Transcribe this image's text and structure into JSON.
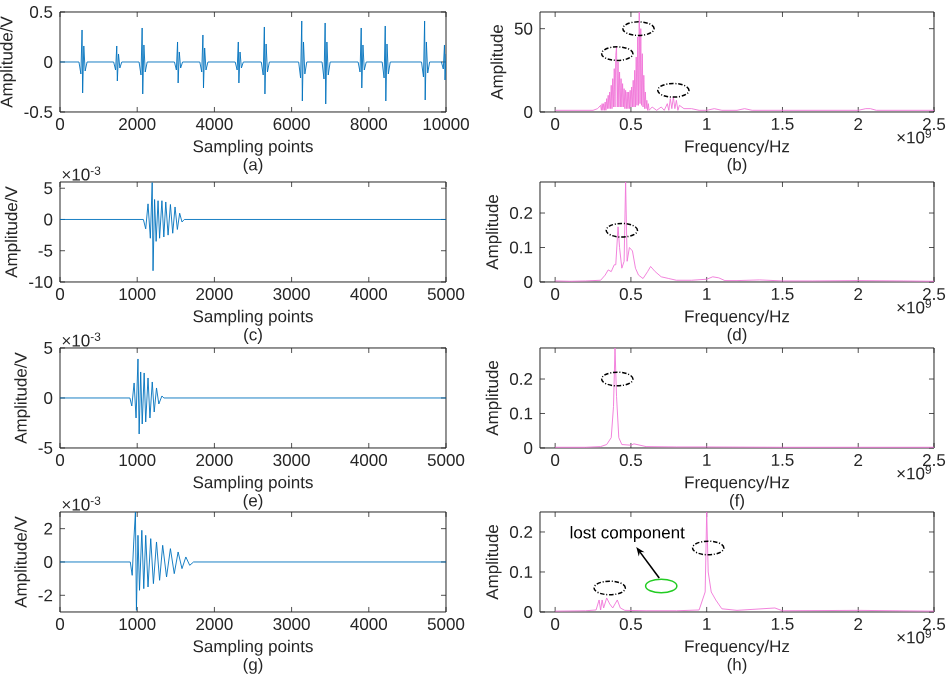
{
  "chart_data": [
    {
      "type": "line",
      "title": "(a)",
      "xlabel": "Sampling points",
      "ylabel": "Amplitude/V",
      "xlim": [
        0,
        10000
      ],
      "xticks": [
        0,
        2000,
        4000,
        6000,
        8000,
        10000
      ],
      "ylim": [
        -0.5,
        0.5
      ],
      "yticks": [
        -0.5,
        0,
        0.5
      ],
      "series": [
        {
          "color": "#0072bd",
          "x": [
            0,
            491,
            541,
            571,
            586,
            616,
            651,
            701,
            1390,
            1440,
            1470,
            1485,
            1515,
            1550,
            1600,
            2048,
            2098,
            2128,
            2143,
            2173,
            2208,
            2258,
            2965,
            3015,
            3045,
            3060,
            3090,
            3125,
            3175,
            3622,
            3672,
            3702,
            3717,
            3747,
            3782,
            3832,
            4539,
            4589,
            4619,
            4634,
            4664,
            4699,
            4749,
            5214,
            5264,
            5294,
            5309,
            5339,
            5374,
            5424,
            6183,
            6233,
            6263,
            6278,
            6308,
            6343,
            6393,
            6789,
            6839,
            6869,
            6884,
            6914,
            6949,
            6999,
            7723,
            7773,
            7803,
            7818,
            7848,
            7883,
            7933,
            8346,
            8396,
            8426,
            8441,
            8471,
            8506,
            8556,
            9366,
            9416,
            9446,
            9461,
            9491,
            9526,
            9576,
            9880,
            9930,
            9960,
            9975,
            10000
          ],
          "values": [
            0,
            0,
            -0.12,
            0.32,
            -0.31,
            0.16,
            -0.09,
            0,
            0,
            -0.08,
            0.16,
            -0.19,
            0.08,
            -0.06,
            0,
            0,
            -0.13,
            0.34,
            -0.32,
            0.17,
            -0.1,
            0,
            0,
            -0.08,
            0.2,
            -0.21,
            0.1,
            -0.06,
            0,
            0,
            -0.1,
            0.27,
            -0.26,
            0.14,
            -0.08,
            0,
            0,
            -0.08,
            0.2,
            -0.21,
            0.1,
            -0.06,
            0,
            0,
            -0.13,
            0.35,
            -0.32,
            0.18,
            -0.1,
            0,
            0,
            -0.16,
            0.41,
            -0.39,
            0.2,
            -0.12,
            0,
            0,
            -0.17,
            0.39,
            -0.42,
            0.2,
            -0.13,
            0,
            0,
            -0.1,
            0.34,
            -0.26,
            0.17,
            -0.08,
            0,
            0,
            -0.16,
            0.36,
            -0.39,
            0.18,
            -0.12,
            0,
            0,
            -0.15,
            0.41,
            -0.38,
            0.2,
            -0.11,
            0,
            0,
            -0.07,
            0.17,
            -0.18,
            0.08
          ]
        }
      ]
    },
    {
      "type": "line",
      "title": "(b)",
      "xlabel": "Frequency/Hz",
      "ylabel": "Amplitude",
      "annotations": [
        "×10$^{9}$"
      ],
      "xlim": [
        -0.1,
        2.5
      ],
      "xticks": [
        0,
        0.5,
        1,
        1.5,
        2,
        2.5
      ],
      "ylim": [
        0,
        60
      ],
      "yticks": [
        0,
        50
      ],
      "series": [
        {
          "color": "#f075d8",
          "x": [
            0,
            0.05,
            0.1,
            0.15,
            0.2,
            0.25,
            0.28,
            0.3,
            0.305,
            0.31,
            0.315,
            0.32,
            0.325,
            0.33,
            0.335,
            0.34,
            0.345,
            0.35,
            0.355,
            0.36,
            0.365,
            0.37,
            0.375,
            0.38,
            0.385,
            0.39,
            0.395,
            0.4,
            0.405,
            0.41,
            0.415,
            0.42,
            0.425,
            0.43,
            0.435,
            0.44,
            0.445,
            0.45,
            0.455,
            0.46,
            0.465,
            0.47,
            0.475,
            0.48,
            0.485,
            0.49,
            0.495,
            0.5,
            0.505,
            0.51,
            0.515,
            0.52,
            0.525,
            0.53,
            0.535,
            0.54,
            0.545,
            0.55,
            0.555,
            0.56,
            0.565,
            0.57,
            0.575,
            0.58,
            0.585,
            0.59,
            0.595,
            0.6,
            0.605,
            0.61,
            0.615,
            0.62,
            0.64,
            0.67,
            0.7,
            0.72,
            0.74,
            0.75,
            0.76,
            0.77,
            0.78,
            0.79,
            0.8,
            0.81,
            0.82,
            0.85,
            0.9,
            0.95,
            1,
            1.05,
            1.1,
            1.2,
            1.25,
            1.3,
            1.4,
            1.45,
            1.5,
            1.6,
            1.7,
            1.8,
            1.9,
            2,
            2.05,
            2.08,
            2.12,
            2.2,
            2.3,
            2.4,
            2.5
          ],
          "values": [
            1,
            1,
            1,
            1,
            1,
            1,
            2,
            4,
            1,
            5,
            1,
            5,
            1,
            6,
            1,
            8,
            2,
            10,
            2,
            12,
            2,
            16,
            2,
            20,
            3,
            26,
            3,
            34,
            39,
            3,
            30,
            3,
            24,
            3,
            20,
            3,
            17,
            3,
            14,
            2,
            13,
            2,
            12,
            2,
            12,
            2,
            13,
            3,
            15,
            3,
            19,
            3,
            25,
            3,
            33,
            4,
            45,
            4,
            60,
            5,
            50,
            4,
            35,
            3,
            22,
            2,
            12,
            2,
            7,
            1,
            5,
            1,
            3,
            1,
            3,
            1,
            5,
            1,
            8,
            2,
            9,
            2,
            7,
            1,
            4,
            2,
            2,
            1,
            1,
            2,
            1,
            1,
            2,
            1,
            1,
            1,
            1,
            1,
            1,
            1,
            1,
            1,
            2,
            2,
            1,
            1,
            1,
            1,
            1
          ]
        },
        {
          "type": "scatter",
          "color": "#000000",
          "marker": "circle",
          "line_style": "dashed",
          "x": [
            0.41,
            0.55,
            0.78
          ],
          "values": [
            35,
            50,
            13
          ]
        }
      ]
    },
    {
      "type": "line",
      "title": "(c)",
      "xlabel": "Sampling points",
      "ylabel": "Amplitude/V",
      "annotations": [
        "×10$^{-3}$"
      ],
      "xlim": [
        0,
        5000
      ],
      "xticks": [
        0,
        1000,
        2000,
        3000,
        4000,
        5000
      ],
      "ylim": [
        -10,
        6
      ],
      "yticks": [
        -10,
        -5,
        0,
        5
      ],
      "series": [
        {
          "color": "#0072bd",
          "x": [
            0,
            1080,
            1110,
            1140,
            1170,
            1194,
            1205,
            1225,
            1245,
            1270,
            1290,
            1320,
            1345,
            1370,
            1400,
            1430,
            1460,
            1490,
            1520,
            1550,
            1580,
            1610,
            5000
          ],
          "values": [
            0,
            0,
            -1.5,
            2.5,
            -3,
            5.9,
            -8.2,
            3.2,
            -3.5,
            3,
            -3,
            3,
            -2.8,
            2.8,
            -2.5,
            2.4,
            -2.2,
            2,
            -1.6,
            1,
            -0.4,
            0,
            0
          ]
        }
      ]
    },
    {
      "type": "line",
      "title": "(d)",
      "xlabel": "Frequency/Hz",
      "ylabel": "Amplitude",
      "annotations": [
        "×10$^{9}$"
      ],
      "xlim": [
        -0.1,
        2.5
      ],
      "xticks": [
        0,
        0.5,
        1,
        1.5,
        2,
        2.5
      ],
      "ylim": [
        0,
        0.29
      ],
      "yticks": [
        0,
        0.1,
        0.2
      ],
      "series": [
        {
          "color": "#f075d8",
          "x": [
            0,
            0.1,
            0.2,
            0.3,
            0.33,
            0.35,
            0.37,
            0.39,
            0.4,
            0.415,
            0.425,
            0.44,
            0.455,
            0.465,
            0.475,
            0.49,
            0.51,
            0.53,
            0.55,
            0.58,
            0.61,
            0.63,
            0.66,
            0.7,
            0.75,
            0.8,
            0.9,
            1,
            1.04,
            1.08,
            1.12,
            1.2,
            1.35,
            1.5,
            1.7,
            2,
            2.3,
            2.5
          ],
          "values": [
            0.003,
            0.002,
            0.003,
            0.005,
            0.02,
            0.035,
            0.03,
            0.05,
            0.05,
            0.16,
            0.1,
            0.04,
            0.06,
            0.29,
            0.06,
            0.1,
            0.09,
            0.04,
            0.02,
            0.01,
            0.03,
            0.045,
            0.03,
            0.015,
            0.01,
            0.005,
            0.005,
            0.008,
            0.015,
            0.012,
            0.004,
            0.004,
            0.006,
            0.003,
            0.003,
            0.004,
            0.003,
            0.002
          ]
        },
        {
          "type": "scatter",
          "color": "#000000",
          "marker": "circle",
          "line_style": "dashed",
          "x": [
            0.44
          ],
          "values": [
            0.15
          ]
        }
      ]
    },
    {
      "type": "line",
      "title": "(e)",
      "xlabel": "Sampling points",
      "ylabel": "Amplitude/V",
      "annotations": [
        "×10$^{-3}$"
      ],
      "xlim": [
        0,
        5000
      ],
      "xticks": [
        0,
        1000,
        2000,
        3000,
        4000,
        5000
      ],
      "ylim": [
        -5,
        5
      ],
      "yticks": [
        -5,
        0,
        5
      ],
      "series": [
        {
          "color": "#0072bd",
          "x": [
            0,
            905,
            930,
            960,
            985,
            1010,
            1025,
            1045,
            1065,
            1090,
            1110,
            1140,
            1165,
            1195,
            1220,
            1250,
            1280,
            1320,
            1345,
            5000
          ],
          "values": [
            0,
            0,
            -0.8,
            1.5,
            -2,
            3.9,
            -3.6,
            2.6,
            -2.6,
            2.5,
            -2.4,
            2,
            -2,
            1.6,
            -1.4,
            1,
            -0.6,
            0.2,
            0,
            0
          ]
        }
      ]
    },
    {
      "type": "line",
      "title": "(f)",
      "xlabel": "Frequency/Hz",
      "ylabel": "Amplitude",
      "annotations": [
        "×10$^{9}$"
      ],
      "xlim": [
        -0.1,
        2.5
      ],
      "xticks": [
        0,
        0.5,
        1,
        1.5,
        2,
        2.5
      ],
      "ylim": [
        0,
        0.29
      ],
      "yticks": [
        0,
        0.1,
        0.2
      ],
      "series": [
        {
          "color": "#f075d8",
          "x": [
            0,
            0.2,
            0.3,
            0.34,
            0.37,
            0.385,
            0.395,
            0.405,
            0.42,
            0.44,
            0.5,
            0.52,
            0.6,
            0.8,
            1,
            1.5,
            2,
            2.5
          ],
          "values": [
            0.002,
            0.002,
            0.004,
            0.01,
            0.03,
            0.12,
            0.29,
            0.15,
            0.03,
            0.01,
            0.008,
            0.012,
            0.004,
            0.003,
            0.003,
            0.002,
            0.002,
            0.002
          ]
        },
        {
          "type": "scatter",
          "color": "#000000",
          "marker": "circle",
          "line_style": "dashed",
          "x": [
            0.41
          ],
          "values": [
            0.2
          ]
        }
      ]
    },
    {
      "type": "line",
      "title": "(g)",
      "xlabel": "Sampling points",
      "ylabel": "Amplitude/V",
      "annotations": [
        "×10$^{-3}$"
      ],
      "xlim": [
        0,
        5000
      ],
      "xticks": [
        0,
        1000,
        2000,
        3000,
        4000,
        5000
      ],
      "ylim": [
        -3,
        3
      ],
      "yticks": [
        -2,
        0,
        2
      ],
      "series": [
        {
          "color": "#0072bd",
          "x": [
            0,
            910,
            935,
            955,
            977,
            990,
            1010,
            1030,
            1060,
            1085,
            1110,
            1140,
            1175,
            1210,
            1250,
            1290,
            1330,
            1380,
            1430,
            1480,
            1530,
            1580,
            1630,
            1680,
            1730,
            5000
          ],
          "values": [
            0,
            0,
            -0.8,
            1.2,
            3,
            -2.9,
            1.6,
            -1.7,
            1.9,
            -1.6,
            1.6,
            -1.5,
            1.4,
            -1.3,
            1.2,
            -1.1,
            1,
            -0.9,
            0.8,
            -0.7,
            0.6,
            -0.4,
            0.3,
            -0.2,
            0,
            0
          ]
        }
      ]
    },
    {
      "type": "line",
      "title": "(h)",
      "xlabel": "Frequency/Hz",
      "ylabel": "Amplitude",
      "annotations": [
        "×10$^{9}$",
        {
          "text": "lost component",
          "x": 0.7,
          "y": 0.065
        }
      ],
      "xlim": [
        -0.1,
        2.5
      ],
      "xticks": [
        0,
        0.5,
        1,
        1.5,
        2,
        2.5
      ],
      "ylim": [
        0,
        0.25
      ],
      "yticks": [
        0,
        0.1,
        0.2
      ],
      "series": [
        {
          "color": "#f075d8",
          "x": [
            0,
            0.2,
            0.27,
            0.29,
            0.3,
            0.31,
            0.32,
            0.34,
            0.36,
            0.38,
            0.41,
            0.43,
            0.46,
            0.6,
            0.8,
            0.95,
            0.99,
            1,
            1.01,
            1.03,
            1.06,
            1.1,
            1.2,
            1.45,
            1.5,
            2,
            2.5
          ],
          "values": [
            0.002,
            0.003,
            0.005,
            0.03,
            0.005,
            0.03,
            0.01,
            0.035,
            0.02,
            0.01,
            0.03,
            0.01,
            0.004,
            0.003,
            0.003,
            0.005,
            0.05,
            0.25,
            0.1,
            0.05,
            0.03,
            0.008,
            0.004,
            0.01,
            0.003,
            0.004,
            0.002
          ]
        },
        {
          "type": "scatter",
          "color": "#000000",
          "marker": "circle",
          "line_style": "dashed",
          "x": [
            0.36,
            1.01
          ],
          "values": [
            0.06,
            0.16
          ]
        },
        {
          "type": "scatter",
          "color": "#22cc22",
          "marker": "circle",
          "line_style": "solid",
          "x": [
            0.7
          ],
          "values": [
            0.065
          ]
        }
      ]
    }
  ]
}
